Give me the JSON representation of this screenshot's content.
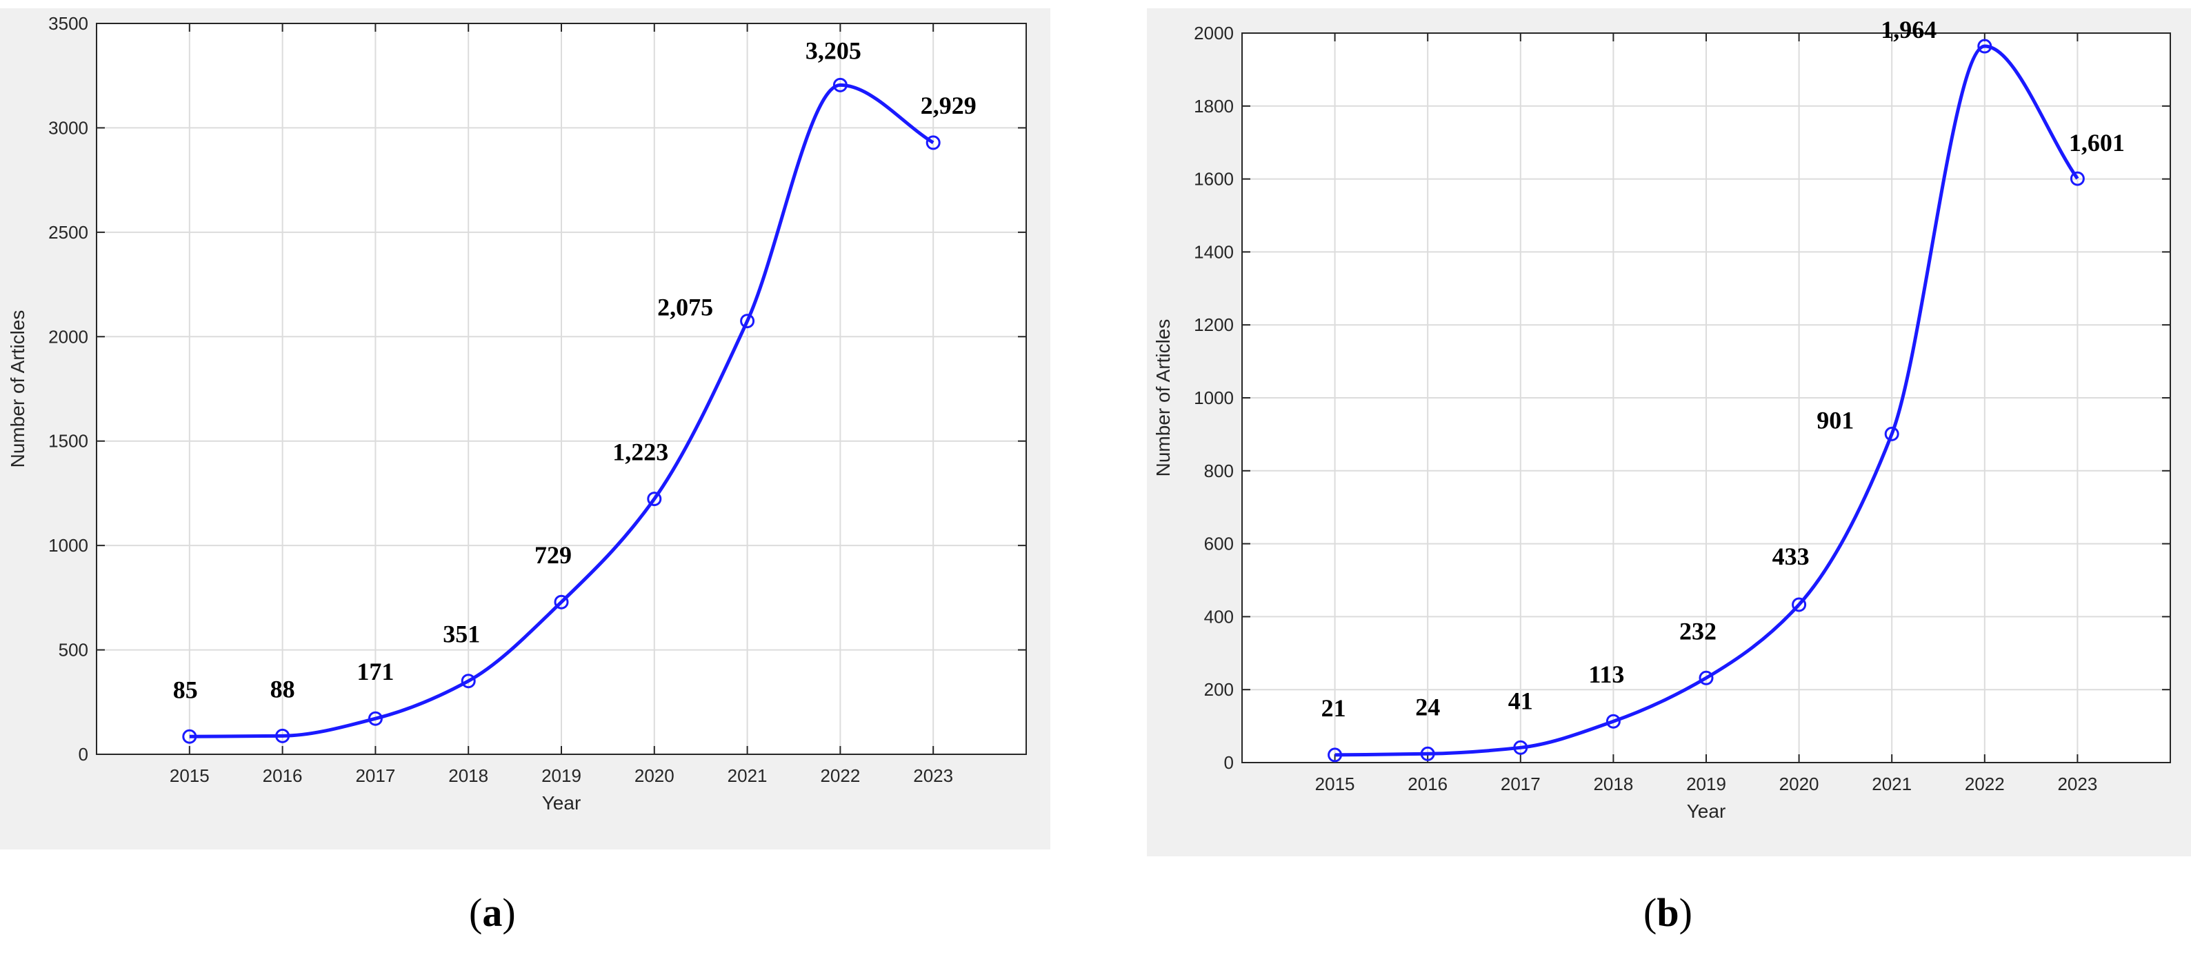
{
  "figure": {
    "caption_a": "a",
    "caption_b": "b"
  },
  "chart_data": [
    {
      "type": "line",
      "panel": "a",
      "x": [
        "2015",
        "2016",
        "2017",
        "2018",
        "2019",
        "2020",
        "2021",
        "2022",
        "2023"
      ],
      "values": [
        85,
        88,
        171,
        351,
        729,
        1223,
        2075,
        3205,
        2929
      ],
      "data_labels": [
        "85",
        "88",
        "171",
        "351",
        "729",
        "1,223",
        "2,075",
        "3,205",
        "2,929"
      ],
      "xlabel": "Year",
      "ylabel": "Number of Articles",
      "ylim": [
        0,
        3500
      ],
      "yticks": [
        0,
        500,
        1000,
        1500,
        2000,
        2500,
        3000,
        3500
      ],
      "xlim": [
        2014,
        2024
      ],
      "grid": true,
      "line_color": "#1a1aff",
      "plot_bg": "#ffffff",
      "frame_bg": "#f0f0f0"
    },
    {
      "type": "line",
      "panel": "b",
      "x": [
        "2015",
        "2016",
        "2017",
        "2018",
        "2019",
        "2020",
        "2021",
        "2022",
        "2023"
      ],
      "values": [
        21,
        24,
        41,
        113,
        232,
        433,
        901,
        1964,
        1601
      ],
      "data_labels": [
        "21",
        "24",
        "41",
        "113",
        "232",
        "433",
        "901",
        "1,964",
        "1,601"
      ],
      "xlabel": "Year",
      "ylabel": "Number of Articles",
      "ylim": [
        0,
        2000
      ],
      "yticks": [
        0,
        200,
        400,
        600,
        800,
        1000,
        1200,
        1400,
        1600,
        1800,
        2000
      ],
      "xlim": [
        2014,
        2024
      ],
      "grid": true,
      "line_color": "#1a1aff",
      "plot_bg": "#ffffff",
      "frame_bg": "#f0f0f0"
    }
  ]
}
